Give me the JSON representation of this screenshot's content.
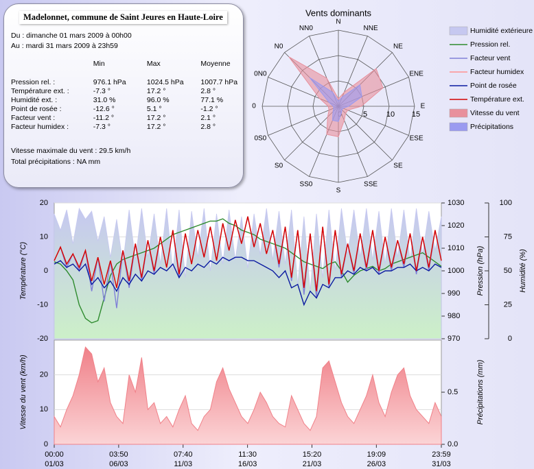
{
  "info": {
    "title": "Madelonnet, commune de Saint Jeures en Haute-Loire",
    "period": [
      "Du : dimanche 01 mars 2009 à 00h00",
      "Au : mardi 31 mars 2009 à 23h59"
    ],
    "table": {
      "header": [
        "Min",
        "Max",
        "Moyenne"
      ],
      "rows": [
        [
          "Pression rel. :",
          "976.1 hPa",
          "1024.5 hPa",
          "1007.7 hPa"
        ],
        [
          "Température ext. :",
          "-7.3 °",
          "17.2 °",
          "2.8 °"
        ],
        [
          "Humidité ext. :",
          "31.0 %",
          "96.0 %",
          "77.1 %"
        ],
        [
          "Point de rosée :",
          "-12.6 °",
          "5.1 °",
          "-1.2 °"
        ],
        [
          "Facteur vent :",
          "-11.2 °",
          "17.2 °",
          "2.1 °"
        ],
        [
          "Facteur humidex :",
          "-7.3 °",
          "17.2 °",
          "2.8 °"
        ]
      ]
    },
    "notes": [
      "Vitesse maximale du vent : 29.5 km/h",
      "Total précipitations : NA mm"
    ]
  },
  "chart_data": [
    {
      "type": "radar",
      "title": "Vents dominants",
      "categories": [
        "N",
        "NNE",
        "NE",
        "ENE",
        "E",
        "ESE",
        "SE",
        "SSE",
        "S",
        "SS0",
        "S0",
        "0S0",
        "0",
        "0N0",
        "N0",
        "NN0"
      ],
      "rlim": [
        0,
        15
      ],
      "rticks": [
        0,
        5,
        10,
        15
      ],
      "series": [
        {
          "name": "Vitesse du vent",
          "color": "#e8909c",
          "values": [
            1.5,
            3,
            10.5,
            9.5,
            4.5,
            2,
            2,
            3,
            6,
            6,
            3,
            2,
            2,
            4,
            13.8,
            6
          ]
        },
        {
          "name": "Précipitations",
          "color": "#9a9af0",
          "values": [
            1,
            2,
            6,
            5,
            2,
            1,
            1,
            1.5,
            3,
            3,
            1.5,
            1,
            1,
            2,
            8,
            3
          ]
        }
      ]
    },
    {
      "type": "line",
      "y_label": "Température (°C)",
      "y2_label": "Pression (hPa)",
      "y3_label": "Humidité (%)",
      "xlim": [
        0,
        744
      ],
      "x": [
        0,
        12,
        24,
        36,
        48,
        60,
        72,
        84,
        96,
        108,
        120,
        132,
        144,
        156,
        168,
        180,
        192,
        204,
        216,
        228,
        240,
        252,
        264,
        276,
        288,
        300,
        312,
        324,
        336,
        348,
        360,
        372,
        384,
        396,
        408,
        420,
        432,
        444,
        456,
        468,
        480,
        492,
        504,
        516,
        528,
        540,
        552,
        564,
        576,
        588,
        600,
        612,
        624,
        636,
        648,
        660,
        672,
        684,
        696,
        708,
        720,
        732,
        744
      ],
      "ylim": [
        -20,
        20
      ],
      "yticks": [
        -20,
        -10,
        0,
        10,
        20
      ],
      "y2lim": [
        970,
        1030
      ],
      "y2ticks": [
        970,
        980,
        990,
        1000,
        1010,
        1020,
        1030
      ],
      "y3lim": [
        0,
        100
      ],
      "y3ticks": [
        0,
        25,
        50,
        75,
        100
      ],
      "grid": true,
      "series": [
        {
          "name": "Humidité extérieure",
          "color": "#c6c8f0",
          "kind": "area",
          "axis": "y3",
          "values": [
            92,
            80,
            95,
            70,
            96,
            88,
            94,
            72,
            90,
            60,
            88,
            55,
            95,
            58,
            96,
            60,
            92,
            55,
            96,
            50,
            95,
            45,
            94,
            60,
            96,
            50,
            92,
            55,
            95,
            58,
            90,
            52,
            92,
            62,
            96,
            58,
            94,
            55,
            95,
            40,
            90,
            35,
            92,
            45,
            95,
            50,
            96,
            62,
            95,
            60,
            96,
            58,
            94,
            55,
            96,
            60,
            95,
            58,
            96,
            62,
            94,
            65,
            90
          ]
        },
        {
          "name": "Pression rel.",
          "color": "#2e8b2e",
          "axis": "y2",
          "values": [
            1004,
            1003,
            1000,
            996,
            985,
            979,
            977,
            978,
            988,
            998,
            1003,
            1005,
            1006,
            1007,
            1008,
            1009,
            1010,
            1012,
            1014,
            1016,
            1017,
            1018,
            1019,
            1020,
            1021,
            1022,
            1022,
            1023,
            1021,
            1020,
            1018,
            1017,
            1016,
            1014,
            1013,
            1012,
            1011,
            1010,
            1008,
            1006,
            1004,
            1003,
            1002,
            1001,
            1003,
            1004,
            1000,
            995,
            998,
            1000,
            1001,
            1002,
            1000,
            1001,
            1003,
            1004,
            1005,
            1006,
            1007,
            1008,
            1006,
            1004,
            1002
          ]
        },
        {
          "name": "Facteur vent",
          "color": "#8080d8",
          "axis": "y",
          "values": [
            3,
            7,
            1,
            5,
            0,
            6,
            -6,
            4,
            -9,
            3,
            -11,
            6,
            -5,
            8,
            -3,
            9,
            -1,
            10,
            1,
            12,
            -2,
            11,
            2,
            12,
            4,
            13,
            3,
            14,
            6,
            15,
            8,
            16,
            7,
            14,
            5,
            12,
            1,
            13,
            -3,
            12,
            -7,
            11,
            -8,
            13,
            -5,
            12,
            -2,
            8,
            -1,
            11,
            0,
            12,
            -1,
            10,
            0,
            9,
            1,
            11,
            -1,
            10,
            0,
            12,
            3
          ]
        },
        {
          "name": "Facteur humidex",
          "color": "#ff9090",
          "axis": "y",
          "values": [
            3,
            7,
            2,
            5,
            1,
            6,
            -3,
            4,
            -4,
            3,
            -5,
            6,
            -3,
            8,
            -2,
            9,
            0,
            10,
            1,
            12,
            -1,
            11,
            2,
            12,
            4,
            13,
            3,
            14,
            6,
            15,
            8,
            16,
            7,
            14,
            5,
            12,
            2,
            13,
            -2,
            12,
            -5,
            11,
            -6,
            13,
            -4,
            12,
            -1,
            8,
            0,
            11,
            1,
            12,
            0,
            10,
            1,
            9,
            2,
            11,
            0,
            10,
            1,
            12,
            3
          ]
        },
        {
          "name": "Point de rosée",
          "color": "#0a1aa0",
          "axis": "y",
          "values": [
            2,
            3,
            1,
            2,
            0,
            2,
            -4,
            -2,
            -5,
            -3,
            -6,
            -2,
            -4,
            -1,
            -3,
            0,
            -1,
            1,
            0,
            2,
            -2,
            1,
            0,
            2,
            1,
            3,
            2,
            4,
            3,
            4,
            4,
            3,
            3,
            2,
            1,
            0,
            -2,
            0,
            -5,
            -4,
            -10,
            -6,
            -8,
            -4,
            -5,
            -2,
            -2,
            0,
            -1,
            1,
            0,
            1,
            -1,
            0,
            0,
            1,
            1,
            2,
            0,
            1,
            0,
            2,
            1
          ]
        },
        {
          "name": "Température ext.",
          "color": "#d40000",
          "axis": "y",
          "values": [
            3,
            7,
            2,
            5,
            1,
            6,
            -3,
            4,
            -4,
            3,
            -5,
            6,
            -3,
            8,
            -2,
            9,
            0,
            10,
            1,
            12,
            -1,
            11,
            2,
            12,
            4,
            13,
            3,
            14,
            6,
            15,
            8,
            16,
            7,
            14,
            5,
            12,
            2,
            13,
            -2,
            12,
            -5,
            11,
            -6,
            13,
            -4,
            12,
            -1,
            8,
            0,
            11,
            1,
            12,
            0,
            10,
            1,
            9,
            2,
            11,
            0,
            10,
            1,
            12,
            3
          ]
        }
      ]
    },
    {
      "type": "area",
      "y_label": "Vitesse du vent (km/h)",
      "y2_label": "Précipitations (mm)",
      "xlim": [
        0,
        744
      ],
      "x": [
        0,
        12,
        24,
        36,
        48,
        60,
        72,
        84,
        96,
        108,
        120,
        132,
        144,
        156,
        168,
        180,
        192,
        204,
        216,
        228,
        240,
        252,
        264,
        276,
        288,
        300,
        312,
        324,
        336,
        348,
        360,
        372,
        384,
        396,
        408,
        420,
        432,
        444,
        456,
        468,
        480,
        492,
        504,
        516,
        528,
        540,
        552,
        564,
        576,
        588,
        600,
        612,
        624,
        636,
        648,
        660,
        672,
        684,
        696,
        708,
        720,
        732,
        744
      ],
      "xticks": [
        {
          "value": 0,
          "label": [
            "00:00",
            "01/03"
          ]
        },
        {
          "value": 123.83,
          "label": [
            "03:50",
            "06/03"
          ]
        },
        {
          "value": 247.67,
          "label": [
            "07:40",
            "11/03"
          ]
        },
        {
          "value": 371.5,
          "label": [
            "11:30",
            "16/03"
          ]
        },
        {
          "value": 495.33,
          "label": [
            "15:20",
            "21/03"
          ]
        },
        {
          "value": 619.15,
          "label": [
            "19:09",
            "26/03"
          ]
        },
        {
          "value": 743.98,
          "label": [
            "23:59",
            "31/03"
          ]
        }
      ],
      "ylim": [
        0,
        30
      ],
      "yticks": [
        0,
        10,
        20
      ],
      "y2lim": [
        0,
        1
      ],
      "y2ticks": [
        {
          "value": 0,
          "label": "0.0"
        },
        0.5
      ],
      "grid": true,
      "color": "#f08088",
      "values": [
        8,
        5,
        10,
        14,
        20,
        28,
        26,
        18,
        22,
        12,
        8,
        6,
        20,
        15,
        25,
        10,
        12,
        6,
        8,
        5,
        10,
        14,
        6,
        4,
        8,
        10,
        18,
        22,
        16,
        12,
        8,
        6,
        10,
        15,
        12,
        8,
        6,
        5,
        14,
        10,
        6,
        4,
        8,
        22,
        24,
        18,
        12,
        8,
        6,
        10,
        14,
        20,
        12,
        8,
        15,
        20,
        22,
        14,
        10,
        8,
        6,
        12,
        8
      ]
    }
  ]
}
